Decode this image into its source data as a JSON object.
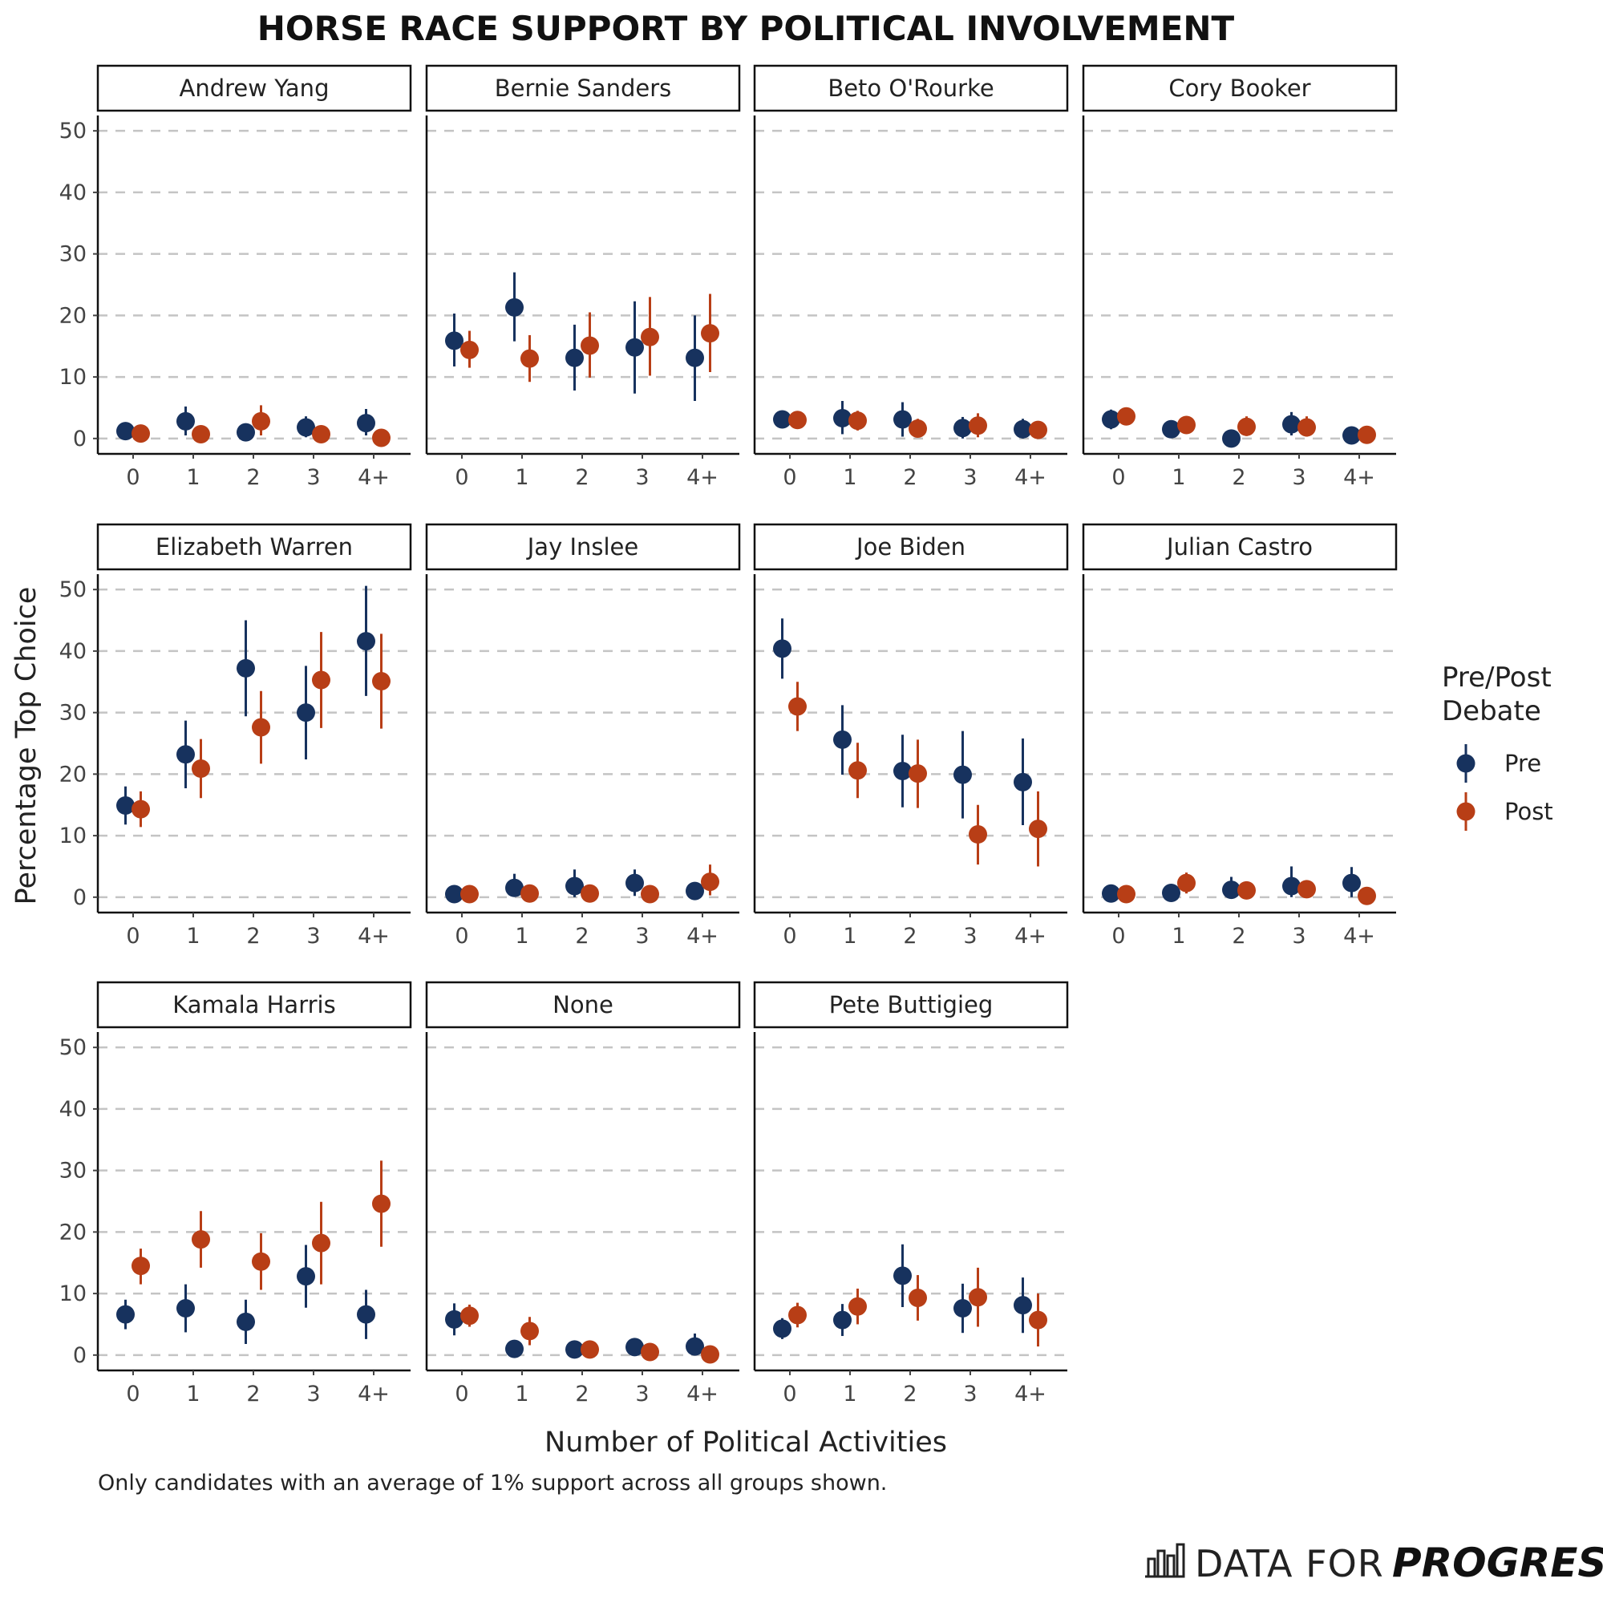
{
  "title": "HORSE RACE SUPPORT BY POLITICAL INVOLVEMENT",
  "x_axis_title": "Number of Political Activities",
  "y_axis_title": "Percentage Top Choice",
  "caption": "Only candidates with an average of 1% support across all groups shown.",
  "brand": {
    "light": "DATA FOR",
    "bold": "PROGRESS",
    "icon": "bar-chart-logo-icon"
  },
  "legend": {
    "title_line1": "Pre/Post",
    "title_line2": "Debate",
    "items": [
      {
        "label": "Pre",
        "color": "#17325e"
      },
      {
        "label": "Post",
        "color": "#b83e16"
      }
    ]
  },
  "chart_data": {
    "type": "scatter",
    "subtype": "faceted point-range (dodged)",
    "categories": [
      "0",
      "1",
      "2",
      "3",
      "4+"
    ],
    "y_ticks": [
      0,
      10,
      20,
      30,
      40,
      50
    ],
    "ylim": [
      -2.5,
      52.5
    ],
    "grid": "horizontal dashed",
    "legend_position": "right",
    "series_colors": {
      "Pre": "#17325e",
      "Post": "#b83e16"
    },
    "facets": [
      {
        "name": "Andrew Yang",
        "pre": {
          "values": [
            1.2,
            2.8,
            1.0,
            1.8,
            2.5
          ],
          "lo": [
            0,
            0.5,
            0,
            0.2,
            0.5
          ],
          "hi": [
            2.5,
            5.2,
            2.2,
            3.6,
            4.8
          ]
        },
        "post": {
          "values": [
            0.8,
            0.7,
            2.8,
            0.7,
            0.1
          ],
          "lo": [
            0,
            0,
            0.5,
            0,
            0
          ],
          "hi": [
            1.8,
            1.6,
            5.4,
            1.7,
            0.4
          ]
        }
      },
      {
        "name": "Bernie Sanders",
        "pre": {
          "values": [
            15.9,
            21.3,
            13.1,
            14.8,
            13.1
          ],
          "lo": [
            11.7,
            15.8,
            7.8,
            7.3,
            6.1
          ],
          "hi": [
            20.3,
            27.0,
            18.5,
            22.3,
            20.0
          ]
        },
        "post": {
          "values": [
            14.4,
            13.0,
            15.1,
            16.5,
            17.1
          ],
          "lo": [
            11.5,
            9.2,
            9.9,
            10.2,
            10.8
          ],
          "hi": [
            17.5,
            16.8,
            20.5,
            23.0,
            23.5
          ]
        }
      },
      {
        "name": "Beto O'Rourke",
        "pre": {
          "values": [
            3.1,
            3.3,
            3.1,
            1.7,
            1.5
          ],
          "lo": [
            1.7,
            0.7,
            0.3,
            0,
            0
          ],
          "hi": [
            4.5,
            6.1,
            5.9,
            3.5,
            3.2
          ]
        },
        "post": {
          "values": [
            3.0,
            2.9,
            1.6,
            2.1,
            1.4
          ],
          "lo": [
            1.8,
            1.3,
            0.2,
            0.2,
            0.3
          ],
          "hi": [
            4.2,
            4.5,
            3.2,
            4.1,
            2.7
          ]
        }
      },
      {
        "name": "Cory Booker",
        "pre": {
          "values": [
            3.1,
            1.5,
            0.0,
            2.3,
            0.5
          ],
          "lo": [
            1.5,
            0.5,
            0,
            0.5,
            0
          ],
          "hi": [
            4.7,
            2.5,
            0.3,
            4.3,
            1.2
          ]
        },
        "post": {
          "values": [
            3.6,
            2.2,
            1.9,
            1.8,
            0.6
          ],
          "lo": [
            2.4,
            0.8,
            0.4,
            0.3,
            0.1
          ],
          "hi": [
            4.8,
            3.6,
            3.6,
            3.6,
            1.2
          ]
        }
      },
      {
        "name": "Elizabeth Warren",
        "pre": {
          "values": [
            14.9,
            23.2,
            37.2,
            30.0,
            41.6
          ],
          "lo": [
            11.8,
            17.7,
            29.4,
            22.4,
            32.7
          ],
          "hi": [
            18.0,
            28.7,
            45.0,
            37.6,
            50.6
          ]
        },
        "post": {
          "values": [
            14.3,
            20.9,
            27.6,
            35.3,
            35.1
          ],
          "lo": [
            11.4,
            16.1,
            21.7,
            27.5,
            27.4
          ],
          "hi": [
            17.2,
            25.7,
            33.5,
            43.1,
            42.8
          ]
        }
      },
      {
        "name": "Jay Inslee",
        "pre": {
          "values": [
            0.5,
            1.5,
            1.8,
            2.3,
            1.0
          ],
          "lo": [
            0,
            0.3,
            0,
            0.2,
            0
          ],
          "hi": [
            1.0,
            3.8,
            4.5,
            4.5,
            2.2
          ]
        },
        "post": {
          "values": [
            0.5,
            0.6,
            0.6,
            0.5,
            2.5
          ],
          "lo": [
            0,
            0,
            0,
            0,
            0.3
          ],
          "hi": [
            1.0,
            1.3,
            1.3,
            1.2,
            5.3
          ]
        }
      },
      {
        "name": "Joe Biden",
        "pre": {
          "values": [
            40.4,
            25.6,
            20.5,
            19.9,
            18.7
          ],
          "lo": [
            35.5,
            19.9,
            14.6,
            12.8,
            11.7
          ],
          "hi": [
            45.3,
            31.2,
            26.4,
            27.0,
            25.8
          ]
        },
        "post": {
          "values": [
            31.0,
            20.6,
            20.1,
            10.2,
            11.1
          ],
          "lo": [
            27.0,
            16.1,
            14.5,
            5.3,
            5.0
          ],
          "hi": [
            35.0,
            25.1,
            25.6,
            15.0,
            17.2
          ]
        }
      },
      {
        "name": "Julian Castro",
        "pre": {
          "values": [
            0.6,
            0.7,
            1.2,
            1.8,
            2.3
          ],
          "lo": [
            0.1,
            0,
            0,
            0,
            0
          ],
          "hi": [
            1.1,
            1.6,
            3.3,
            5.0,
            4.9
          ]
        },
        "post": {
          "values": [
            0.5,
            2.3,
            1.1,
            1.3,
            0.2
          ],
          "lo": [
            0,
            0.6,
            0.2,
            0.1,
            0
          ],
          "hi": [
            1.0,
            4.0,
            2.0,
            2.6,
            0.5
          ]
        }
      },
      {
        "name": "Kamala Harris",
        "pre": {
          "values": [
            6.6,
            7.6,
            5.4,
            12.8,
            6.6
          ],
          "lo": [
            4.2,
            3.7,
            1.8,
            7.7,
            2.6
          ],
          "hi": [
            9.0,
            11.5,
            9.0,
            17.9,
            10.6
          ]
        },
        "post": {
          "values": [
            14.5,
            18.8,
            15.2,
            18.2,
            24.6
          ],
          "lo": [
            11.5,
            14.2,
            10.6,
            11.5,
            17.6
          ],
          "hi": [
            17.3,
            23.4,
            19.8,
            24.9,
            31.6
          ]
        }
      },
      {
        "name": "None",
        "pre": {
          "values": [
            5.8,
            1.0,
            0.9,
            1.3,
            1.4
          ],
          "lo": [
            3.2,
            0,
            0,
            0,
            0
          ],
          "hi": [
            8.4,
            2.0,
            1.8,
            2.6,
            3.5
          ]
        },
        "post": {
          "values": [
            6.4,
            3.9,
            0.9,
            0.5,
            0.1
          ],
          "lo": [
            4.6,
            1.6,
            0,
            0,
            0
          ],
          "hi": [
            8.2,
            6.2,
            1.8,
            1.0,
            0.4
          ]
        }
      },
      {
        "name": "Pete Buttigieg",
        "pre": {
          "values": [
            4.3,
            5.7,
            12.9,
            7.6,
            8.1
          ],
          "lo": [
            2.6,
            3.1,
            7.8,
            3.6,
            3.6
          ],
          "hi": [
            6.0,
            8.3,
            18.0,
            11.6,
            12.6
          ]
        },
        "post": {
          "values": [
            6.5,
            7.9,
            9.3,
            9.4,
            5.7
          ],
          "lo": [
            4.5,
            5.0,
            5.6,
            4.6,
            1.4
          ],
          "hi": [
            8.5,
            10.8,
            13.0,
            14.2,
            10.0
          ]
        }
      }
    ]
  }
}
